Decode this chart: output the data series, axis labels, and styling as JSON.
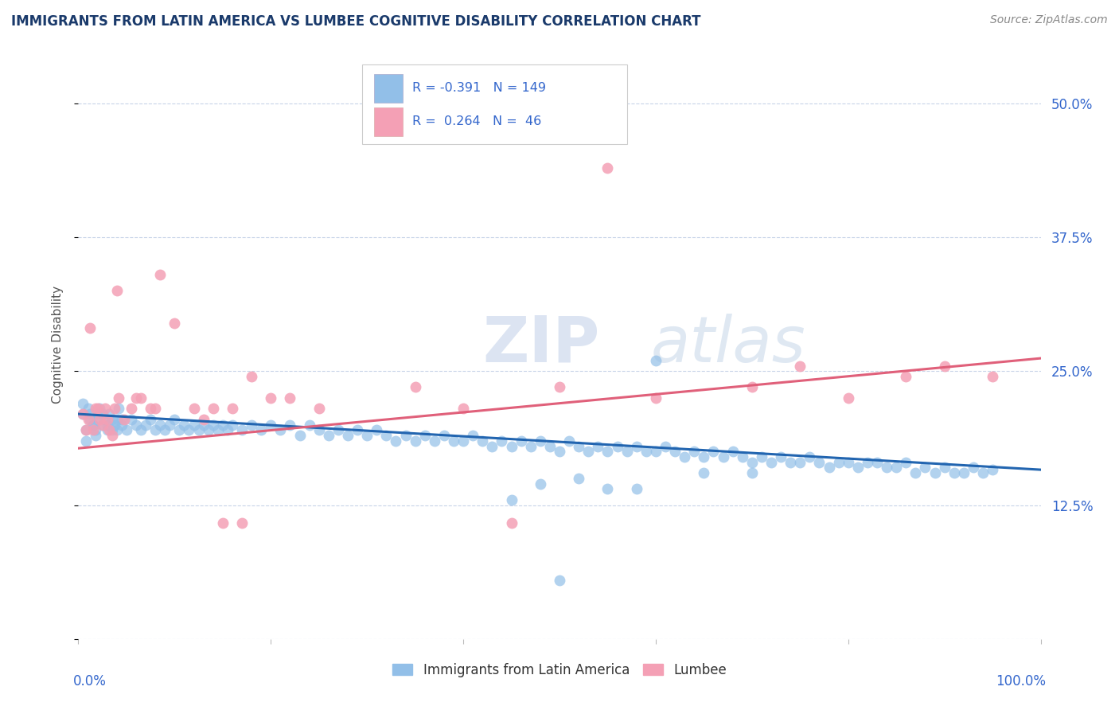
{
  "title": "IMMIGRANTS FROM LATIN AMERICA VS LUMBEE COGNITIVE DISABILITY CORRELATION CHART",
  "source": "Source: ZipAtlas.com",
  "ylabel": "Cognitive Disability",
  "ytick_positions": [
    0.0,
    0.125,
    0.25,
    0.375,
    0.5
  ],
  "ytick_labels": [
    "",
    "12.5%",
    "25.0%",
    "37.5%",
    "50.0%"
  ],
  "xtick_positions": [
    0.0,
    0.2,
    0.4,
    0.6,
    0.8,
    1.0
  ],
  "xlim": [
    0.0,
    1.0
  ],
  "ylim": [
    0.0,
    0.55
  ],
  "blue_color": "#92bfe8",
  "pink_color": "#f4a0b5",
  "blue_line_color": "#2265b0",
  "pink_line_color": "#e0607a",
  "title_color": "#1a3a6b",
  "label_color": "#3366cc",
  "watermark_color": "#d0dff0",
  "background_color": "#ffffff",
  "grid_color": "#c8d4e8",
  "blue_line_y_start": 0.21,
  "blue_line_y_end": 0.158,
  "pink_line_y_start": 0.178,
  "pink_line_y_end": 0.262,
  "blue_scatter_x": [
    0.005,
    0.008,
    0.01,
    0.012,
    0.015,
    0.018,
    0.02,
    0.022,
    0.025,
    0.028,
    0.03,
    0.032,
    0.035,
    0.038,
    0.04,
    0.042,
    0.045,
    0.005,
    0.008,
    0.012,
    0.015,
    0.018,
    0.02,
    0.025,
    0.03,
    0.035,
    0.04,
    0.045,
    0.05,
    0.055,
    0.06,
    0.065,
    0.07,
    0.075,
    0.08,
    0.085,
    0.09,
    0.095,
    0.1,
    0.105,
    0.11,
    0.115,
    0.12,
    0.125,
    0.13,
    0.135,
    0.14,
    0.145,
    0.15,
    0.155,
    0.16,
    0.17,
    0.18,
    0.19,
    0.2,
    0.21,
    0.22,
    0.23,
    0.24,
    0.25,
    0.26,
    0.27,
    0.28,
    0.29,
    0.3,
    0.31,
    0.32,
    0.33,
    0.34,
    0.35,
    0.36,
    0.37,
    0.38,
    0.39,
    0.4,
    0.41,
    0.42,
    0.43,
    0.44,
    0.45,
    0.46,
    0.47,
    0.48,
    0.49,
    0.5,
    0.51,
    0.52,
    0.53,
    0.54,
    0.55,
    0.56,
    0.57,
    0.58,
    0.59,
    0.6,
    0.61,
    0.62,
    0.63,
    0.64,
    0.65,
    0.66,
    0.67,
    0.68,
    0.69,
    0.7,
    0.71,
    0.72,
    0.73,
    0.74,
    0.75,
    0.76,
    0.77,
    0.78,
    0.79,
    0.8,
    0.81,
    0.82,
    0.83,
    0.84,
    0.85,
    0.86,
    0.87,
    0.88,
    0.89,
    0.9,
    0.91,
    0.92,
    0.93,
    0.94,
    0.95,
    0.6,
    0.65,
    0.58,
    0.7,
    0.45,
    0.5,
    0.55,
    0.48,
    0.52
  ],
  "blue_scatter_y": [
    0.21,
    0.195,
    0.215,
    0.205,
    0.2,
    0.19,
    0.21,
    0.215,
    0.2,
    0.205,
    0.195,
    0.21,
    0.205,
    0.2,
    0.195,
    0.215,
    0.205,
    0.22,
    0.185,
    0.21,
    0.2,
    0.195,
    0.205,
    0.21,
    0.2,
    0.195,
    0.205,
    0.2,
    0.195,
    0.205,
    0.2,
    0.195,
    0.2,
    0.205,
    0.195,
    0.2,
    0.195,
    0.2,
    0.205,
    0.195,
    0.2,
    0.195,
    0.2,
    0.195,
    0.2,
    0.195,
    0.2,
    0.195,
    0.2,
    0.195,
    0.2,
    0.195,
    0.2,
    0.195,
    0.2,
    0.195,
    0.2,
    0.19,
    0.2,
    0.195,
    0.19,
    0.195,
    0.19,
    0.195,
    0.19,
    0.195,
    0.19,
    0.185,
    0.19,
    0.185,
    0.19,
    0.185,
    0.19,
    0.185,
    0.185,
    0.19,
    0.185,
    0.18,
    0.185,
    0.18,
    0.185,
    0.18,
    0.185,
    0.18,
    0.175,
    0.185,
    0.18,
    0.175,
    0.18,
    0.175,
    0.18,
    0.175,
    0.18,
    0.175,
    0.175,
    0.18,
    0.175,
    0.17,
    0.175,
    0.17,
    0.175,
    0.17,
    0.175,
    0.17,
    0.165,
    0.17,
    0.165,
    0.17,
    0.165,
    0.165,
    0.17,
    0.165,
    0.16,
    0.165,
    0.165,
    0.16,
    0.165,
    0.165,
    0.16,
    0.16,
    0.165,
    0.155,
    0.16,
    0.155,
    0.16,
    0.155,
    0.155,
    0.16,
    0.155,
    0.158,
    0.26,
    0.155,
    0.14,
    0.155,
    0.13,
    0.055,
    0.14,
    0.145,
    0.15
  ],
  "pink_scatter_x": [
    0.005,
    0.01,
    0.015,
    0.02,
    0.025,
    0.03,
    0.035,
    0.04,
    0.008,
    0.012,
    0.018,
    0.022,
    0.028,
    0.032,
    0.038,
    0.042,
    0.048,
    0.055,
    0.065,
    0.075,
    0.085,
    0.1,
    0.12,
    0.14,
    0.16,
    0.18,
    0.2,
    0.13,
    0.15,
    0.17,
    0.06,
    0.08,
    0.22,
    0.25,
    0.35,
    0.45,
    0.5,
    0.6,
    0.7,
    0.75,
    0.8,
    0.86,
    0.9,
    0.95,
    0.4,
    0.55
  ],
  "pink_scatter_y": [
    0.21,
    0.205,
    0.195,
    0.215,
    0.2,
    0.205,
    0.19,
    0.325,
    0.195,
    0.29,
    0.215,
    0.205,
    0.215,
    0.195,
    0.215,
    0.225,
    0.205,
    0.215,
    0.225,
    0.215,
    0.34,
    0.295,
    0.215,
    0.215,
    0.215,
    0.245,
    0.225,
    0.205,
    0.108,
    0.108,
    0.225,
    0.215,
    0.225,
    0.215,
    0.235,
    0.108,
    0.235,
    0.225,
    0.235,
    0.255,
    0.225,
    0.245,
    0.255,
    0.245,
    0.215,
    0.44
  ]
}
